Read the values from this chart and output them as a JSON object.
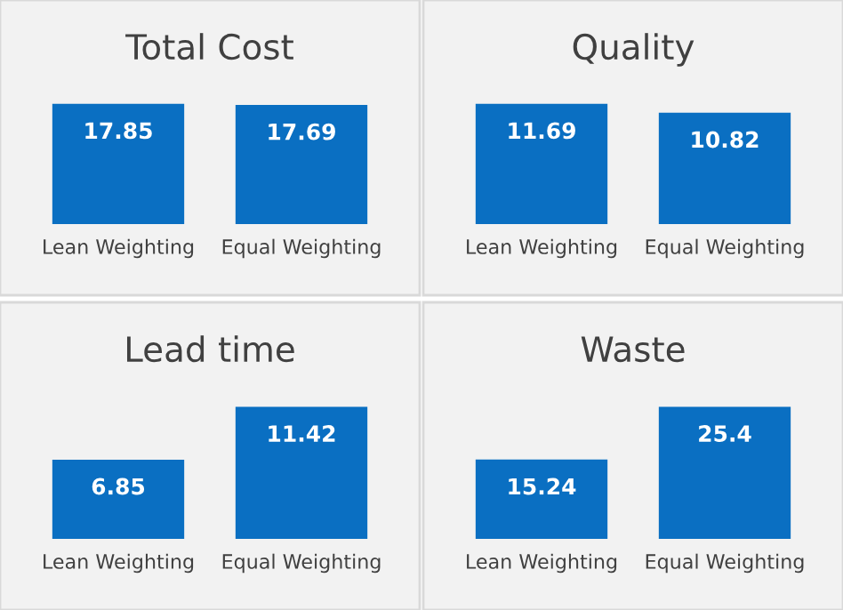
{
  "chart_data": [
    {
      "type": "bar",
      "title": "Total Cost",
      "categories": [
        "Lean Weighting",
        "Equal Weighting"
      ],
      "values": [
        17.85,
        17.69
      ],
      "color": "#0a6fc2",
      "data_labels": true
    },
    {
      "type": "bar",
      "title": "Quality",
      "categories": [
        "Lean Weighting",
        "Equal Weighting"
      ],
      "values": [
        11.69,
        10.82
      ],
      "color": "#0a6fc2",
      "data_labels": true
    },
    {
      "type": "bar",
      "title": "Lead time",
      "categories": [
        "Lean Weighting",
        "Equal Weighting"
      ],
      "values": [
        6.85,
        11.42
      ],
      "color": "#0a6fc2",
      "data_labels": true
    },
    {
      "type": "bar",
      "title": "Waste",
      "categories": [
        "Lean Weighting",
        "Equal Weighting"
      ],
      "values": [
        15.24,
        25.4
      ],
      "color": "#0a6fc2",
      "data_labels": true
    }
  ]
}
